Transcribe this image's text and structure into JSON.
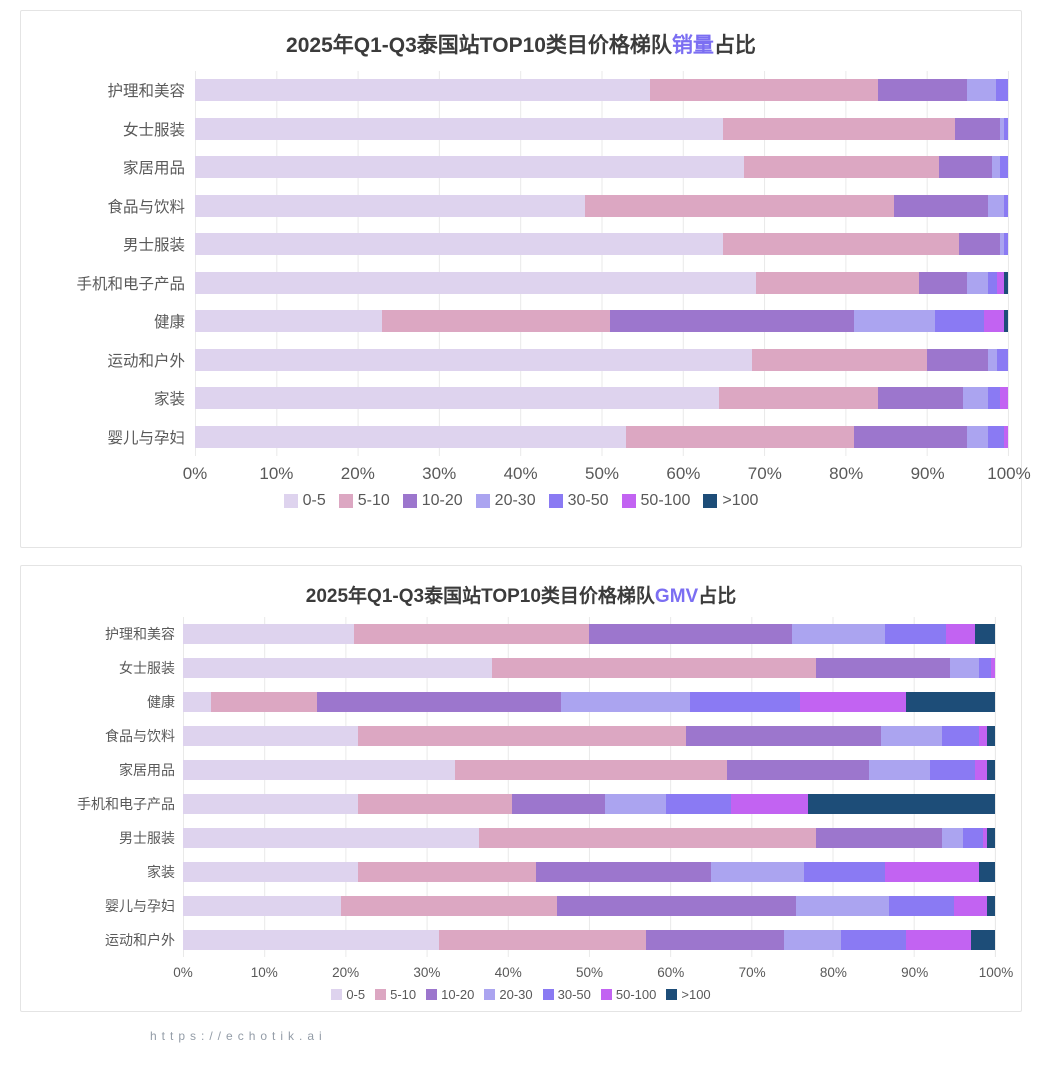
{
  "page": {
    "footer_url": "https://echotik.ai"
  },
  "colors": {
    "tiers": [
      "#ded3ee",
      "#dca7c2",
      "#9c76cd",
      "#aba4f0",
      "#8a7af3",
      "#c263f2",
      "#1d4d78"
    ],
    "title_text": "#3b3b3b",
    "title_highlight": "#7b6ef2",
    "axis_text": "#595959",
    "gridline": "#e9e9e9",
    "card_border": "#e4e4e4"
  },
  "legend": {
    "labels": [
      "0-5",
      "5-10",
      "10-20",
      "20-30",
      "30-50",
      "50-100",
      ">100"
    ],
    "position": "bottom-center"
  },
  "x_axis": {
    "ticks": [
      "0%",
      "10%",
      "20%",
      "30%",
      "40%",
      "50%",
      "60%",
      "70%",
      "80%",
      "90%",
      "100%"
    ],
    "range": [
      0,
      100
    ],
    "grid": true
  },
  "chart_data": [
    {
      "type": "bar",
      "stacked": true,
      "orientation": "horizontal",
      "title_prefix": "2025年Q1-Q3泰国站TOP10类目价格梯队",
      "title_highlight": "销量",
      "title_suffix": "占比",
      "xlim": [
        0,
        100
      ],
      "tiers": [
        "0-5",
        "5-10",
        "10-20",
        "20-30",
        "30-50",
        "50-100",
        ">100"
      ],
      "rows": [
        {
          "category": "护理和美容",
          "values": [
            56,
            28,
            11,
            3.5,
            1.5,
            0,
            0
          ]
        },
        {
          "category": "女士服装",
          "values": [
            65,
            28.5,
            5.5,
            0.5,
            0.5,
            0,
            0
          ]
        },
        {
          "category": "家居用品",
          "values": [
            67.5,
            24,
            6.5,
            1,
            1,
            0,
            0
          ]
        },
        {
          "category": "食品与饮料",
          "values": [
            48,
            38,
            11.5,
            2,
            0.5,
            0,
            0
          ]
        },
        {
          "category": "男士服装",
          "values": [
            65,
            29,
            5,
            0.5,
            0.5,
            0,
            0
          ]
        },
        {
          "category": "手机和电子产品",
          "values": [
            69,
            20,
            6,
            2.5,
            1.2,
            0.8,
            0.5
          ]
        },
        {
          "category": "健康",
          "values": [
            23,
            28,
            30,
            10,
            6,
            2.5,
            0.5
          ]
        },
        {
          "category": "运动和户外",
          "values": [
            68.5,
            21.5,
            7.5,
            1.2,
            1.3,
            0,
            0
          ]
        },
        {
          "category": "家装",
          "values": [
            64.5,
            19.5,
            10.5,
            3,
            1.5,
            1,
            0
          ]
        },
        {
          "category": "婴儿与孕妇",
          "values": [
            53,
            28,
            14,
            2.5,
            2,
            0.5,
            0
          ]
        }
      ]
    },
    {
      "type": "bar",
      "stacked": true,
      "orientation": "horizontal",
      "title_prefix": "2025年Q1-Q3泰国站TOP10类目价格梯队",
      "title_highlight": "GMV",
      "title_suffix": "占比",
      "xlim": [
        0,
        100
      ],
      "tiers": [
        "0-5",
        "5-10",
        "10-20",
        "20-30",
        "30-50",
        "50-100",
        ">100"
      ],
      "rows": [
        {
          "category": "护理和美容",
          "values": [
            21,
            29,
            25,
            11.5,
            7.5,
            3.5,
            2.5
          ]
        },
        {
          "category": "女士服装",
          "values": [
            38,
            40,
            16.5,
            3.5,
            1.5,
            0.5,
            0
          ]
        },
        {
          "category": "健康",
          "values": [
            3.5,
            13,
            30,
            16,
            13.5,
            13,
            11
          ]
        },
        {
          "category": "食品与饮料",
          "values": [
            21.5,
            40.5,
            24,
            7.5,
            4.5,
            1,
            1
          ]
        },
        {
          "category": "家居用品",
          "values": [
            33.5,
            33.5,
            17.5,
            7.5,
            5.5,
            1.5,
            1
          ]
        },
        {
          "category": "手机和电子产品",
          "values": [
            21.5,
            19,
            11.5,
            7.5,
            8,
            9.5,
            23
          ]
        },
        {
          "category": "男士服装",
          "values": [
            36.5,
            41.5,
            15.5,
            2.5,
            2.5,
            0.5,
            1
          ]
        },
        {
          "category": "家装",
          "values": [
            21.5,
            22,
            21.5,
            11.5,
            10,
            11.5,
            2
          ]
        },
        {
          "category": "婴儿与孕妇",
          "values": [
            19.5,
            26.5,
            29.5,
            11.5,
            8,
            4,
            1
          ]
        },
        {
          "category": "运动和户外",
          "values": [
            31.5,
            25.5,
            17,
            7,
            8,
            8,
            3
          ]
        }
      ]
    }
  ]
}
